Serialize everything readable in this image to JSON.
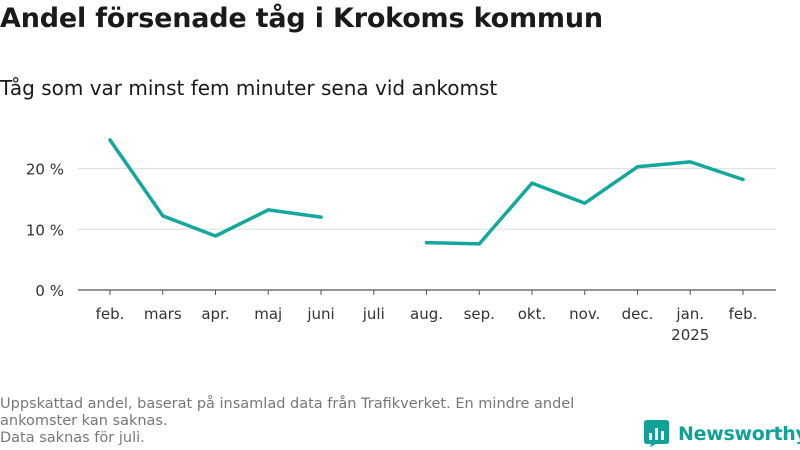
{
  "title": "Andel försenade tåg i Krokoms kommun",
  "subtitle": "Tåg som var minst fem minuter sena vid ankomst",
  "footnote": {
    "line1": "Uppskattad andel, baserat på insamlad data från Trafikverket. En mindre andel",
    "line2": "ankomster kan saknas.",
    "line3": "Data saknas för juli."
  },
  "brand": {
    "name": "Newsworthy",
    "color": "#10a296",
    "icon": "newsworthy-chart-logo-icon"
  },
  "chart_data": {
    "type": "line",
    "categories": [
      "feb.",
      "mars",
      "apr.",
      "maj",
      "juni",
      "juli",
      "aug.",
      "sep.",
      "okt.",
      "nov.",
      "dec.",
      "jan.",
      "feb."
    ],
    "category_sublabels": [
      "",
      "",
      "",
      "",
      "",
      "",
      "",
      "",
      "",
      "",
      "",
      "2025",
      ""
    ],
    "series": [
      {
        "values": [
          24.7,
          12.2,
          8.9,
          13.2,
          12.0,
          null,
          7.8,
          7.6,
          17.6,
          14.3,
          20.3,
          21.1,
          18.2
        ]
      }
    ],
    "line_color": "#14a79b",
    "ylim": [
      0,
      28
    ],
    "yticks": [
      0,
      10,
      20
    ],
    "ytick_labels": [
      "0 %",
      "10 %",
      "20 %"
    ],
    "xlabel": "",
    "ylabel": "",
    "grid": true,
    "legend": "none"
  }
}
